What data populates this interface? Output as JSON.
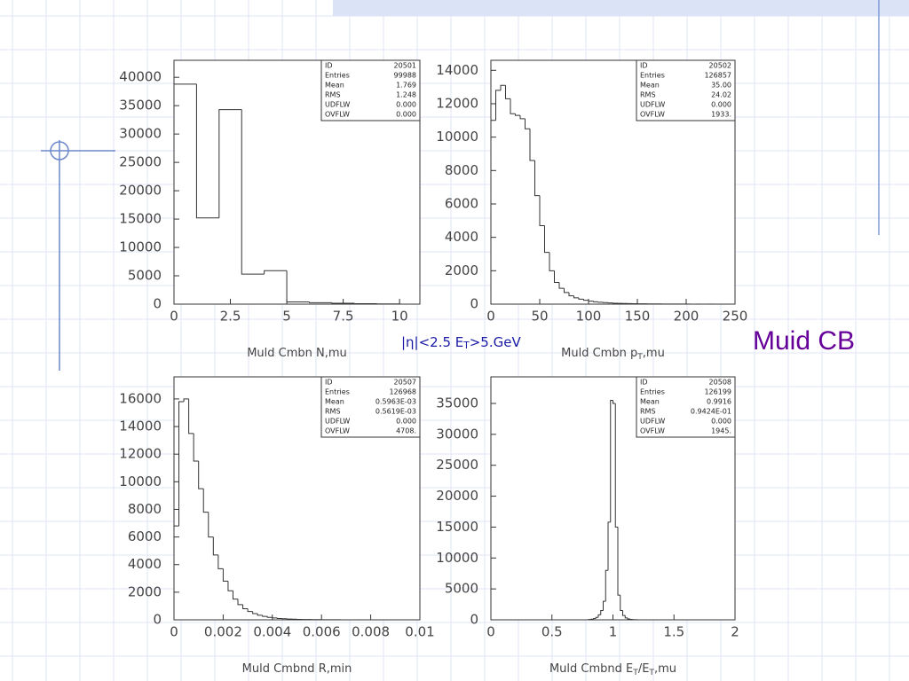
{
  "slide": {
    "title": "Muid CB",
    "cut": [
      {
        "text": "|η|<2.5  E"
      },
      {
        "text": "T",
        "sub": true
      },
      {
        "text": ">5.GeV"
      }
    ]
  },
  "chart_data": [
    {
      "type": "histogram",
      "xlabel": [
        {
          "text": "Muld Cmbn N,mu"
        }
      ],
      "stats": [
        {
          "label": "ID",
          "value": "20501"
        },
        {
          "label": "Entries",
          "value": "99988"
        },
        {
          "label": "Mean",
          "value": "1.769"
        },
        {
          "label": "RMS",
          "value": "1.248"
        },
        {
          "label": "UDFLW",
          "value": "0.000"
        },
        {
          "label": "OVFLW",
          "value": "0.000"
        }
      ],
      "bins": [
        0,
        1,
        2,
        3,
        4,
        5,
        6,
        7,
        8,
        9,
        10
      ],
      "values": [
        38800,
        15200,
        34300,
        5300,
        5900,
        400,
        250,
        150,
        80,
        40
      ],
      "color": "#333333",
      "xlim": [
        0,
        10.9
      ],
      "xticks": [
        0,
        2.5,
        5,
        7.5,
        10
      ],
      "ylim": [
        0,
        43000
      ],
      "yticks": [
        0,
        5000,
        10000,
        15000,
        20000,
        25000,
        30000,
        35000,
        40000
      ]
    },
    {
      "type": "histogram",
      "xlabel": [
        {
          "text": "Muld Cmbn p"
        },
        {
          "text": "T",
          "sub": true
        },
        {
          "text": ",mu"
        }
      ],
      "stats": [
        {
          "label": "ID",
          "value": "20502"
        },
        {
          "label": "Entries",
          "value": "126857"
        },
        {
          "label": "Mean",
          "value": "35.00"
        },
        {
          "label": "RMS",
          "value": "24.02"
        },
        {
          "label": "UDFLW",
          "value": "0.000"
        },
        {
          "label": "OVFLW",
          "value": "1933."
        }
      ],
      "bins": [
        0,
        5,
        10,
        15,
        20,
        25,
        30,
        35,
        40,
        45,
        50,
        55,
        60,
        65,
        70,
        75,
        80,
        85,
        90,
        95,
        100,
        105,
        110,
        115,
        120,
        125,
        130,
        135,
        140,
        145,
        150,
        155,
        160,
        165,
        170,
        175,
        180,
        185,
        190,
        195,
        200,
        205,
        210,
        215,
        220,
        225,
        230,
        235,
        240,
        245,
        250
      ],
      "values": [
        11000,
        12800,
        13100,
        12300,
        11400,
        11300,
        11100,
        10500,
        8600,
        6500,
        4700,
        3100,
        2000,
        1300,
        950,
        700,
        500,
        380,
        300,
        230,
        180,
        140,
        110,
        90,
        70,
        55,
        45,
        38,
        30,
        25,
        20,
        17,
        14,
        12,
        10,
        8,
        7,
        6,
        5,
        4,
        4,
        3,
        3,
        2,
        2,
        2,
        1,
        1,
        1,
        1
      ],
      "color": "#333333",
      "xlim": [
        0,
        250
      ],
      "xticks": [
        0,
        50,
        100,
        150,
        200,
        250
      ],
      "ylim": [
        0,
        14600
      ],
      "yticks": [
        0,
        2000,
        4000,
        6000,
        8000,
        10000,
        12000,
        14000
      ]
    },
    {
      "type": "histogram",
      "xlabel": [
        {
          "text": "Muld Cmbnd R,min"
        }
      ],
      "stats": [
        {
          "label": "ID",
          "value": "20507"
        },
        {
          "label": "Entries",
          "value": "126968"
        },
        {
          "label": "Mean",
          "value": "0.5963E-03"
        },
        {
          "label": "RMS",
          "value": "0.5619E-03"
        },
        {
          "label": "UDFLW",
          "value": "0.000"
        },
        {
          "label": "OVFLW",
          "value": "4708."
        }
      ],
      "bins": [
        0,
        0.0002,
        0.0004,
        0.0006,
        0.0008,
        0.001,
        0.0012,
        0.0014,
        0.0016,
        0.0018,
        0.002,
        0.0022,
        0.0024,
        0.0026,
        0.0028,
        0.003,
        0.0032,
        0.0034,
        0.0036,
        0.0038,
        0.004,
        0.0042,
        0.0044,
        0.0046,
        0.0048,
        0.005,
        0.0052,
        0.0054,
        0.0056,
        0.0058,
        0.006,
        0.0062,
        0.0064,
        0.0066,
        0.0068,
        0.007,
        0.0072,
        0.0074,
        0.0076,
        0.0078,
        0.008,
        0.0082,
        0.0084,
        0.0086,
        0.0088,
        0.009,
        0.0092,
        0.0094,
        0.0096,
        0.0098,
        0.01
      ],
      "values": [
        6800,
        15800,
        16000,
        13500,
        11500,
        9500,
        7800,
        6000,
        4700,
        3700,
        2800,
        2100,
        1500,
        1100,
        800,
        600,
        450,
        330,
        250,
        180,
        140,
        100,
        80,
        60,
        45,
        35,
        28,
        22,
        17,
        13,
        10,
        8,
        6,
        5,
        4,
        3,
        2,
        2,
        1,
        1,
        1,
        1,
        1,
        0,
        0,
        0,
        0,
        0,
        0,
        0
      ],
      "color": "#333333",
      "xlim": [
        0,
        0.01
      ],
      "xticks": [
        0,
        0.002,
        0.004,
        0.006,
        0.008,
        0.01
      ],
      "ylim": [
        0,
        17600
      ],
      "yticks": [
        0,
        2000,
        4000,
        6000,
        8000,
        10000,
        12000,
        14000,
        16000
      ]
    },
    {
      "type": "histogram",
      "xlabel": [
        {
          "text": "Muld Cmbnd E"
        },
        {
          "text": "T",
          "sub": true
        },
        {
          "text": "/E"
        },
        {
          "text": "T",
          "sub": true
        },
        {
          "text": ",mu"
        }
      ],
      "stats": [
        {
          "label": "ID",
          "value": "20508"
        },
        {
          "label": "Entries",
          "value": "126199"
        },
        {
          "label": "Mean",
          "value": "0.9916"
        },
        {
          "label": "RMS",
          "value": "0.9424E-01"
        },
        {
          "label": "UDFLW",
          "value": "0.000"
        },
        {
          "label": "OVFLW",
          "value": "1945."
        }
      ],
      "bins": [
        0.8,
        0.82,
        0.84,
        0.86,
        0.88,
        0.9,
        0.92,
        0.94,
        0.96,
        0.98,
        1.0,
        1.02,
        1.04,
        1.06,
        1.08,
        1.1,
        1.12,
        1.14,
        1.16,
        1.18,
        1.2
      ],
      "values": [
        50,
        100,
        200,
        400,
        800,
        1500,
        3000,
        8000,
        15800,
        35500,
        35000,
        15000,
        4000,
        1500,
        700,
        300,
        150,
        80,
        40,
        20
      ],
      "color": "#333333",
      "xlim": [
        0,
        2
      ],
      "xticks": [
        0,
        0.5,
        1,
        1.5,
        2
      ],
      "ylim": [
        0,
        39300
      ],
      "yticks": [
        0,
        5000,
        10000,
        15000,
        20000,
        25000,
        30000,
        35000
      ]
    }
  ]
}
